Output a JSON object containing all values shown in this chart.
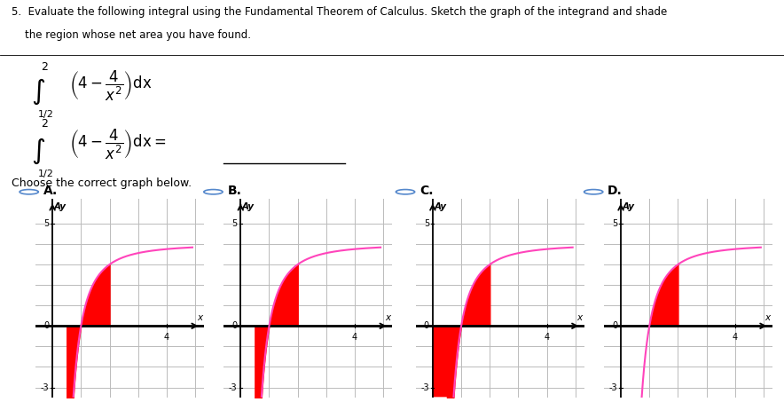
{
  "line1": "5.  Evaluate the following integral using the Fundamental Theorem of Calculus. Sketch the graph of the integrand and shade",
  "line2": "    the region whose net area you have found.",
  "choose_text": "Choose the correct graph below.",
  "graph_labels": [
    "A.",
    "B.",
    "C.",
    "D."
  ],
  "radio_color": "#5588CC",
  "curve_color": "#FF44BB",
  "shade_color": "#FF0000",
  "grid_color": "#BBBBBB",
  "bg_color": "#FFFFFF",
  "text_color": "#000000",
  "xlim": [
    -0.6,
    5.3
  ],
  "ylim": [
    -3.5,
    6.2
  ],
  "y_tick_5": 5,
  "y_tick_n3": -3,
  "x_tick_4": 4
}
